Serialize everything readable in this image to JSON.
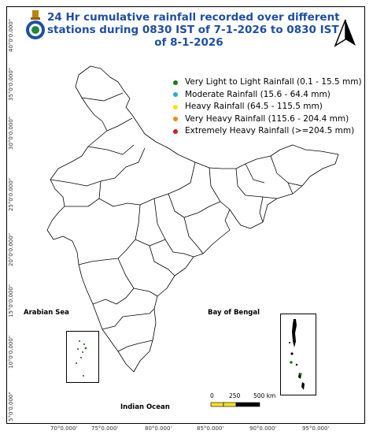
{
  "title": {
    "line1": "24 Hr cumulative rainfall recorded over different",
    "line2": "stations during 0830 IST of 7-1-2026 to 0830 IST",
    "line3": "of 8-1-2026"
  },
  "legend": [
    {
      "label": "Very Light to Light Rainfall (0.1 - 15.5 mm)",
      "color": "#1a7a1a"
    },
    {
      "label": "Moderate Rainfall (15.6 - 64.4 mm)",
      "color": "#29a8e0"
    },
    {
      "label": "Heavy Rainfall (64.5 - 115.5 mm)",
      "color": "#f2e21c"
    },
    {
      "label": "Very Heavy Rainfall (115.6 - 204.4 mm)",
      "color": "#f28a1c"
    },
    {
      "label": "Extremely Heavy Rainfall (>=204.5 mm)",
      "color": "#d8191c"
    }
  ],
  "labels": {
    "arabian_sea": "Arabian Sea",
    "bay_of_bengal": "Bay of Bengal",
    "indian_ocean": "Indian Ocean"
  },
  "scale_bar": {
    "zero": "0",
    "mid": "250",
    "max": "500 km"
  },
  "lat_ticks": [
    "40°0'0.000\"",
    "35°0'0.000\"",
    "30°0'0.000\"",
    "25°0'0.000\"",
    "20°0'0.000\"",
    "15°0'0.000\"",
    "10°0'0.000\"",
    "5°0'0.000\""
  ],
  "lon_ticks": [
    "70°0.000'",
    "75°0.000'",
    "80°0.000'",
    "85°0.000'",
    "90°0.000'",
    "95°0.000'"
  ],
  "icons": {
    "north_arrow": "north-arrow-icon",
    "emblem": "imd-emblem-icon"
  }
}
